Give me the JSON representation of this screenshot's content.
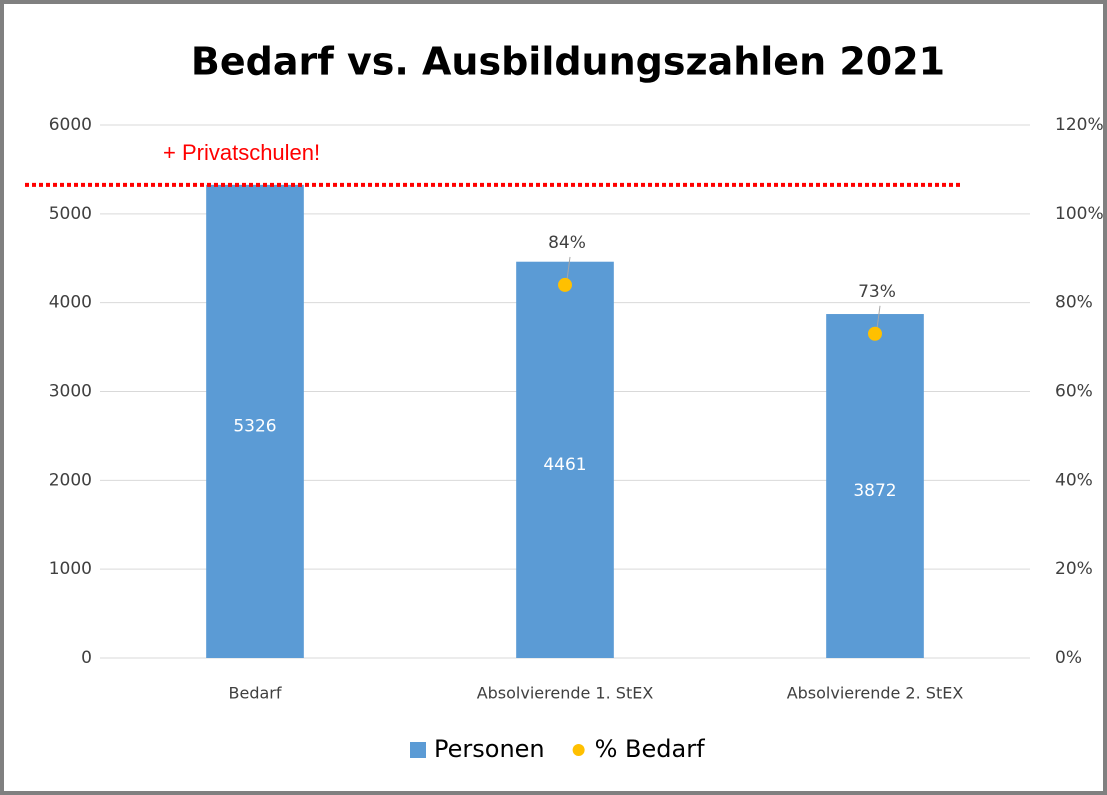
{
  "chart_data": {
    "type": "bar",
    "title": "Bedarf vs. Ausbildungszahlen 2021",
    "categories": [
      "Bedarf",
      "Absolvierende 1. StEX",
      "Absolvierende 2. StEX"
    ],
    "series": [
      {
        "name": "Personen",
        "type": "bar",
        "color": "#5b9bd5",
        "values": [
          5326,
          4461,
          3872
        ]
      },
      {
        "name": "% Bedarf",
        "type": "scatter",
        "axis": "y2",
        "color": "#ffc000",
        "values": [
          null,
          84,
          73
        ],
        "value_labels": [
          null,
          "84%",
          "73%"
        ]
      }
    ],
    "ylim": [
      0,
      6000
    ],
    "yticks": [
      0,
      1000,
      2000,
      3000,
      4000,
      5000,
      6000
    ],
    "y2lim": [
      0,
      120
    ],
    "y2ticks": [
      {
        "value": 0,
        "label": "0%"
      },
      {
        "value": 20,
        "label": "20%"
      },
      {
        "value": 40,
        "label": "40%"
      },
      {
        "value": 60,
        "label": "60%"
      },
      {
        "value": 80,
        "label": "80%"
      },
      {
        "value": 100,
        "label": "100%"
      },
      {
        "value": 120,
        "label": "120%"
      }
    ],
    "grid": true,
    "legend": "bottom",
    "annotation": {
      "text": "+ Privatschulen!",
      "value": 5326,
      "color": "#ff0000"
    }
  }
}
